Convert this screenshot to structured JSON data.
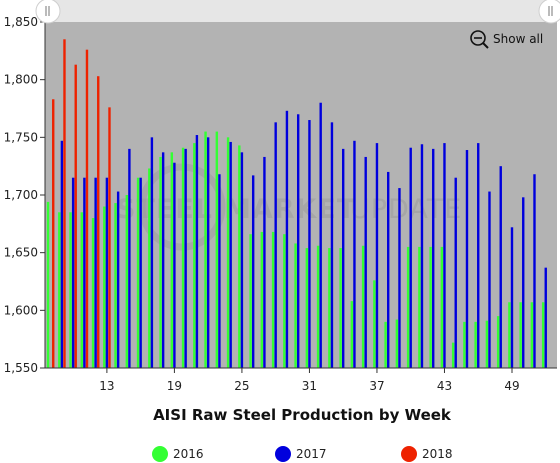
{
  "chart_data": {
    "type": "bar",
    "title": "AISI Raw Steel Production by Week",
    "xlabel": "",
    "ylabel": "",
    "ylim": [
      1550,
      1850
    ],
    "xlim": [
      7.5,
      53
    ],
    "y_ticks": [
      "1,550",
      "1,600",
      "1,650",
      "1,700",
      "1,750",
      "1,800",
      "1,850"
    ],
    "y_tick_values": [
      1550,
      1600,
      1650,
      1700,
      1750,
      1800,
      1850
    ],
    "x_ticks": [
      "13",
      "19",
      "25",
      "31",
      "37",
      "43",
      "49"
    ],
    "x_tick_values": [
      13,
      19,
      25,
      31,
      37,
      43,
      49
    ],
    "grid": false,
    "legend_position": "bottom",
    "series": [
      {
        "name": "2016",
        "color": "#33ff33",
        "weeks": [
          8,
          9,
          10,
          11,
          12,
          13,
          14,
          15,
          16,
          17,
          18,
          19,
          20,
          21,
          22,
          23,
          24,
          25,
          26,
          27,
          28,
          29,
          30,
          31,
          32,
          33,
          34,
          35,
          36,
          37,
          38,
          39,
          40,
          41,
          42,
          43,
          44,
          45,
          46,
          47,
          48,
          49,
          50,
          51,
          52
        ],
        "values": [
          1694,
          1685,
          1685,
          1685,
          1680,
          1690,
          1693,
          1700,
          1715,
          1723,
          1733,
          1737,
          1741,
          1745,
          1755,
          1755,
          1750,
          1743,
          1666,
          1668,
          1668,
          1666,
          1658,
          1654,
          1656,
          1654,
          1654,
          1608,
          1656,
          1626,
          1590,
          1592,
          1655,
          1655,
          1655,
          1655,
          1572,
          1590,
          1590,
          1591,
          1595,
          1607,
          1607,
          1607,
          1607
        ]
      },
      {
        "name": "2017",
        "color": "#0000dd",
        "weeks": [
          9,
          10,
          11,
          12,
          13,
          14,
          15,
          16,
          17,
          18,
          19,
          20,
          21,
          22,
          23,
          24,
          25,
          26,
          27,
          28,
          29,
          30,
          31,
          32,
          33,
          34,
          35,
          36,
          37,
          38,
          39,
          40,
          41,
          42,
          43,
          44,
          45,
          46,
          47,
          48,
          49,
          50,
          51,
          52
        ],
        "values": [
          1747,
          1715,
          1715,
          1715,
          1715,
          1703,
          1740,
          1715,
          1750,
          1737,
          1728,
          1740,
          1752,
          1750,
          1718,
          1746,
          1737,
          1717,
          1733,
          1763,
          1773,
          1770,
          1765,
          1780,
          1763,
          1740,
          1747,
          1733,
          1745,
          1720,
          1706,
          1741,
          1744,
          1740,
          1745,
          1715,
          1739,
          1745,
          1703,
          1725,
          1672,
          1698,
          1718,
          1637
        ]
      },
      {
        "name": "2018",
        "color": "#ee2200",
        "weeks": [
          8,
          9,
          10,
          11,
          12,
          13
        ],
        "values": [
          1783,
          1835,
          1813,
          1826,
          1803,
          1776
        ]
      }
    ]
  },
  "show_all_label": "Show all",
  "icons": {
    "zoom_out": "zoom-out-icon",
    "legend_marker": "circle"
  },
  "watermark_words": [
    "STEEL",
    "MARKET",
    "UPDATE"
  ]
}
